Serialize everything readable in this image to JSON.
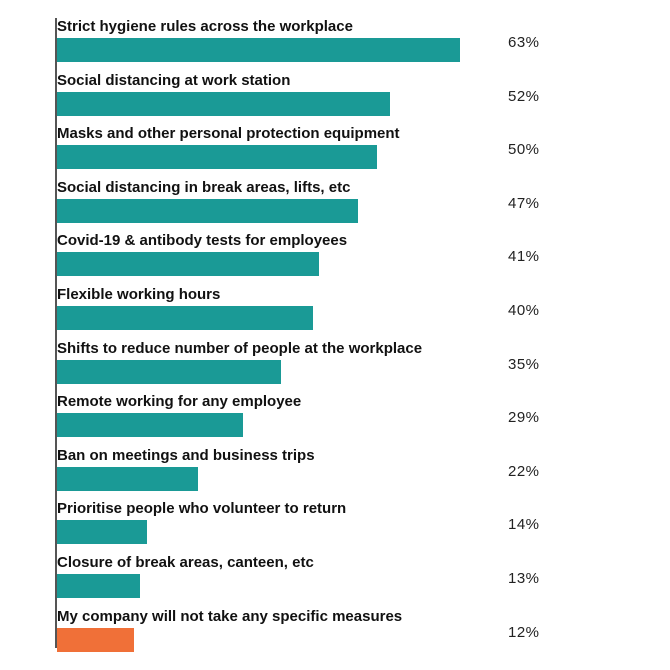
{
  "chart_data": {
    "type": "bar",
    "orientation": "horizontal",
    "categories": [
      "Strict hygiene rules across the workplace",
      "Social distancing at  work station",
      "Masks and other personal protection equipment",
      "Social distancing in break areas, lifts, etc",
      "Covid-19 & antibody tests for employees",
      "Flexible working hours",
      "Shifts to reduce number of people at the workplace",
      "Remote working for any employee",
      "Ban on meetings and business trips",
      "Prioritise people who volunteer to return",
      "Closure of break areas, canteen, etc",
      "My company will not take any specific measures"
    ],
    "values": [
      63,
      52,
      50,
      47,
      41,
      40,
      35,
      29,
      22,
      14,
      13,
      12
    ],
    "value_labels": [
      "63%",
      "52%",
      "50%",
      "47%",
      "41%",
      "40%",
      "35%",
      "29%",
      "22%",
      "14%",
      "13%",
      "12%"
    ],
    "colors": [
      "#1a9a96",
      "#1a9a96",
      "#1a9a96",
      "#1a9a96",
      "#1a9a96",
      "#1a9a96",
      "#1a9a96",
      "#1a9a96",
      "#1a9a96",
      "#1a9a96",
      "#1a9a96",
      "#f07038"
    ],
    "xlim": [
      0,
      100
    ],
    "grid": false
  }
}
